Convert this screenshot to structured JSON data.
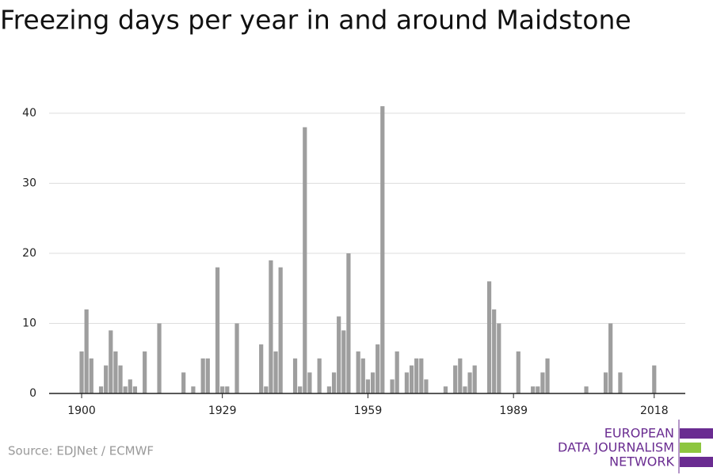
{
  "chart_data": {
    "type": "bar",
    "title": "Freezing days per year in and around Maidstone",
    "source": "Source: EDJNet / ECMWF",
    "logo": [
      "EUROPEAN",
      "DATA JOURNALISM",
      "NETWORK"
    ],
    "color": "#9e9e9e",
    "x": [
      1900,
      1901,
      1902,
      1903,
      1904,
      1905,
      1906,
      1907,
      1908,
      1909,
      1910,
      1911,
      1912,
      1913,
      1914,
      1915,
      1916,
      1917,
      1918,
      1919,
      1920,
      1921,
      1922,
      1923,
      1924,
      1925,
      1926,
      1927,
      1928,
      1929,
      1930,
      1931,
      1932,
      1933,
      1934,
      1935,
      1936,
      1937,
      1938,
      1939,
      1940,
      1941,
      1942,
      1943,
      1944,
      1945,
      1946,
      1947,
      1948,
      1949,
      1950,
      1951,
      1952,
      1953,
      1954,
      1955,
      1956,
      1957,
      1958,
      1959,
      1960,
      1961,
      1962,
      1963,
      1964,
      1965,
      1966,
      1967,
      1968,
      1969,
      1970,
      1971,
      1972,
      1973,
      1974,
      1975,
      1976,
      1977,
      1978,
      1979,
      1980,
      1981,
      1982,
      1983,
      1984,
      1985,
      1986,
      1987,
      1988,
      1989,
      1990,
      1991,
      1992,
      1993,
      1994,
      1995,
      1996,
      1997,
      1998,
      1999,
      2000,
      2001,
      2002,
      2003,
      2004,
      2005,
      2006,
      2007,
      2008,
      2009,
      2010,
      2011,
      2012,
      2013,
      2014,
      2015,
      2016,
      2017,
      2018
    ],
    "values": [
      6,
      12,
      5,
      0,
      1,
      4,
      9,
      6,
      4,
      1,
      2,
      1,
      0,
      6,
      0,
      0,
      10,
      0,
      0,
      0,
      0,
      3,
      0,
      1,
      0,
      5,
      5,
      0,
      18,
      1,
      1,
      0,
      10,
      0,
      0,
      0,
      0,
      7,
      1,
      19,
      6,
      18,
      0,
      0,
      5,
      1,
      38,
      3,
      0,
      5,
      0,
      1,
      3,
      11,
      9,
      20,
      0,
      6,
      5,
      2,
      3,
      7,
      41,
      0,
      2,
      6,
      0,
      3,
      4,
      5,
      5,
      2,
      0,
      0,
      0,
      1,
      0,
      4,
      5,
      1,
      3,
      4,
      0,
      0,
      16,
      12,
      10,
      0,
      0,
      0,
      6,
      0,
      0,
      1,
      1,
      3,
      5,
      0,
      0,
      0,
      0,
      0,
      0,
      0,
      1,
      0,
      0,
      0,
      3,
      10,
      0,
      3,
      0,
      0,
      0,
      0,
      0,
      0,
      4
    ],
    "xlim": [
      1893.3,
      2024.4
    ],
    "xticks": [
      1900,
      1929,
      1959,
      1989,
      2018
    ],
    "ylim": [
      0,
      40
    ],
    "yticks": [
      0,
      10,
      20,
      30,
      40
    ],
    "grid": true
  }
}
